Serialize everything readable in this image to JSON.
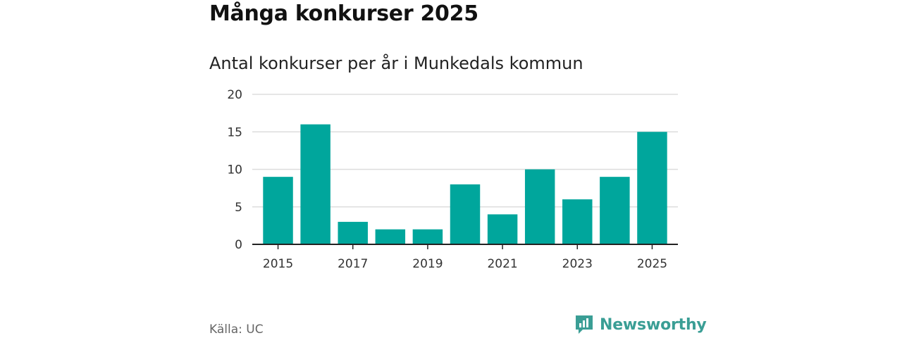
{
  "header": {
    "title": "Många konkurser 2025",
    "subtitle": "Antal konkurser per år i Munkedals kommun"
  },
  "footer": {
    "source": "Källa: UC",
    "brand": "Newsworthy",
    "brand_icon": "newsworthy-logo-icon"
  },
  "colors": {
    "bar": "#00a69c",
    "grid": "#dddddd",
    "brand": "#3a9e95"
  },
  "chart_data": {
    "type": "bar",
    "title": "Antal konkurser per år i Munkedals kommun",
    "xlabel": "",
    "ylabel": "",
    "categories": [
      "2015",
      "2016",
      "2017",
      "2018",
      "2019",
      "2020",
      "2021",
      "2022",
      "2023",
      "2024",
      "2025"
    ],
    "values": [
      9,
      16,
      3,
      2,
      2,
      8,
      4,
      10,
      6,
      9,
      15
    ],
    "x_tick_labels": [
      "2015",
      "2017",
      "2019",
      "2021",
      "2023",
      "2025"
    ],
    "y_ticks": [
      0,
      5,
      10,
      15,
      20
    ],
    "ylim": [
      0,
      20
    ],
    "grid": true,
    "legend": "none"
  }
}
